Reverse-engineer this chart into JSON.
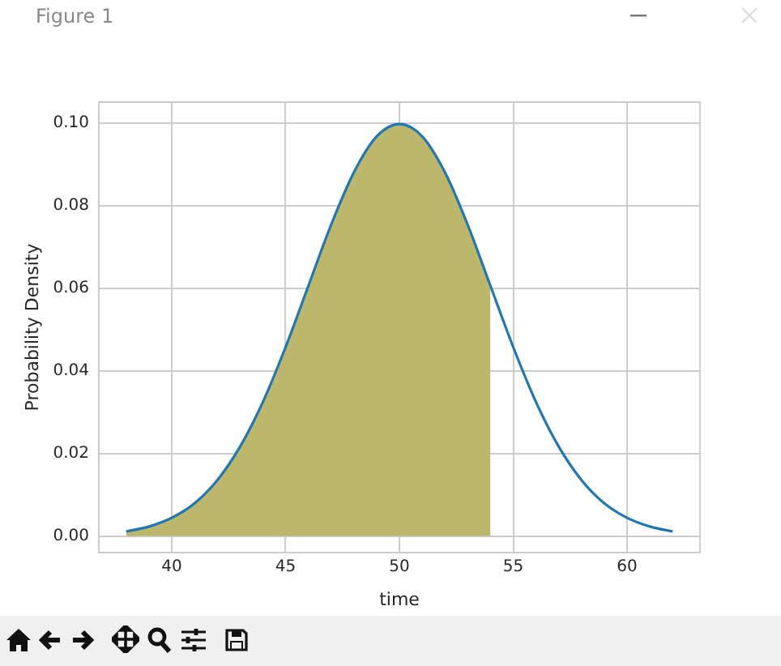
{
  "chart_data": {
    "type": "line",
    "xlabel": "time",
    "ylabel": "Probability Density",
    "annotations": [
      "Figure 1"
    ],
    "xlim": [
      36.8,
      63.2
    ],
    "xticks": [
      40,
      45,
      50,
      55,
      60
    ],
    "ylim": [
      -0.004,
      0.105
    ],
    "yticks": [
      {
        "value": 0,
        "label": "0.00"
      },
      {
        "value": 0.02,
        "label": "0.02"
      },
      {
        "value": 0.04,
        "label": "0.04"
      },
      {
        "value": 0.06,
        "label": "0.06"
      },
      {
        "value": 0.08,
        "label": "0.08"
      },
      {
        "value": 0.1,
        "label": "0.10"
      }
    ],
    "grid": true,
    "legend": false,
    "marker": "none",
    "line_style": "solid",
    "series": [
      {
        "type": "area",
        "color": "#bdb76b",
        "x": [
          38,
          39,
          40,
          41,
          42,
          43,
          44,
          45,
          46,
          47,
          48,
          49,
          50,
          51,
          52,
          53,
          54
        ],
        "values": [
          0.0011,
          0.0023,
          0.0044,
          0.0079,
          0.0135,
          0.0216,
          0.0324,
          0.0457,
          0.0605,
          0.0753,
          0.088,
          0.0967,
          0.0997,
          0.0967,
          0.088,
          0.0753,
          0.0605
        ]
      },
      {
        "type": "line",
        "color": "#2077b4",
        "x": [
          38,
          39,
          40,
          41,
          42,
          43,
          44,
          45,
          46,
          47,
          48,
          49,
          50,
          51,
          52,
          53,
          54,
          55,
          56,
          57,
          58,
          59,
          60,
          61,
          62
        ],
        "values": [
          0.0011,
          0.0023,
          0.0044,
          0.0079,
          0.0135,
          0.0216,
          0.0324,
          0.0457,
          0.0605,
          0.0753,
          0.088,
          0.0967,
          0.0997,
          0.0967,
          0.088,
          0.0753,
          0.0605,
          0.0457,
          0.0324,
          0.0216,
          0.0135,
          0.0079,
          0.0044,
          0.0023,
          0.0011
        ]
      }
    ]
  }
}
